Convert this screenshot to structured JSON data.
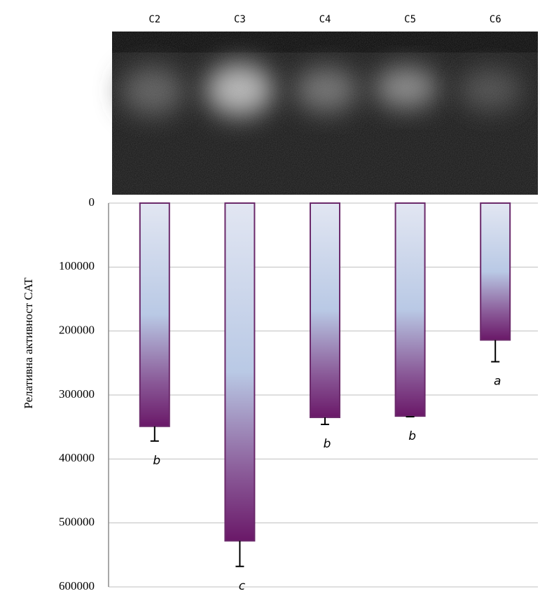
{
  "chart_data": {
    "type": "bar",
    "ylabel": "Релативна активност CAT",
    "categories": [
      "C2",
      "C3",
      "C4",
      "C5",
      "C6"
    ],
    "values": [
      349000,
      528000,
      335000,
      333000,
      214000
    ],
    "errors": [
      23000,
      40000,
      11000,
      1000,
      34000
    ],
    "annotations": [
      "b",
      "c",
      "b",
      "b",
      "a"
    ],
    "ylim": [
      0,
      600000
    ],
    "yticks": [
      0,
      100000,
      200000,
      300000,
      400000,
      500000,
      600000
    ],
    "y_inverted": true,
    "grid": true
  }
}
